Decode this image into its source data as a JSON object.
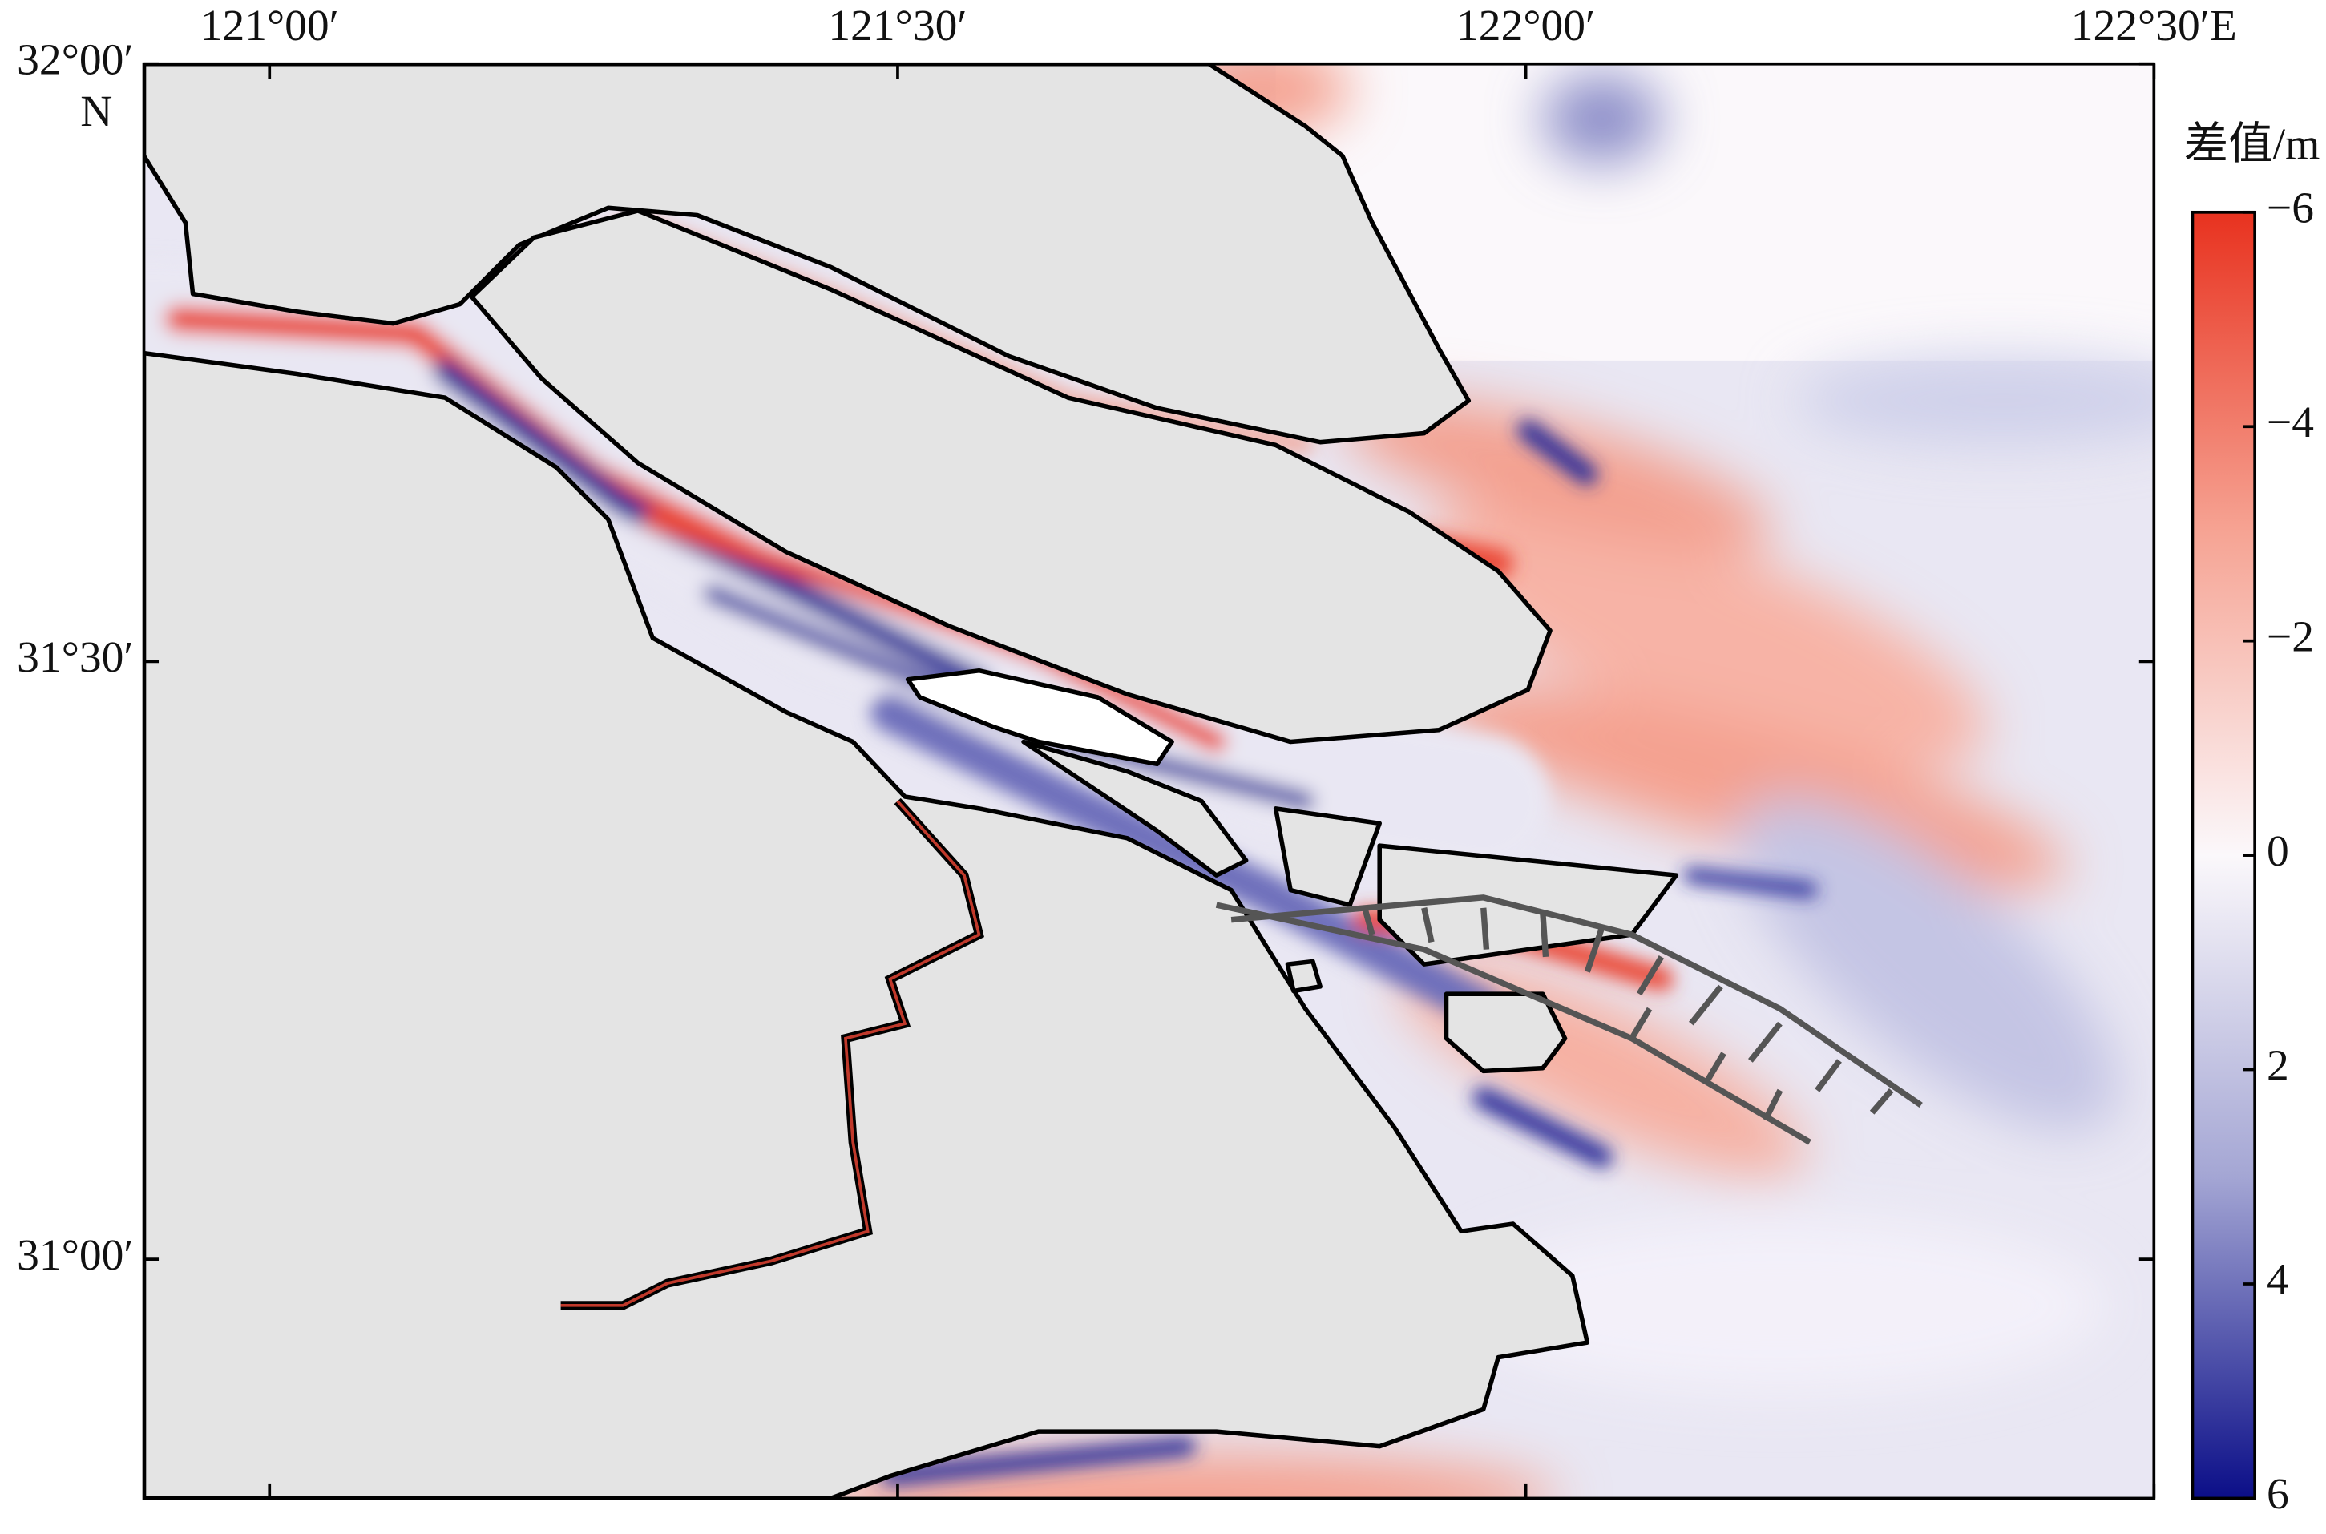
{
  "map": {
    "type": "map",
    "xlim": [
      120.9,
      122.5
    ],
    "ylim": [
      30.8,
      32.0
    ],
    "xticks": [
      {
        "value": 121.0,
        "label": "121°00′"
      },
      {
        "value": 121.5,
        "label": "121°30′"
      },
      {
        "value": 122.0,
        "label": "122°00′"
      },
      {
        "value": 122.5,
        "label": "122°30′E"
      }
    ],
    "yticks": [
      {
        "value": 32.0,
        "label": "32°00′"
      },
      {
        "value": 31.5,
        "label": "31°30′"
      },
      {
        "value": 31.0,
        "label": "31°00′"
      }
    ],
    "y_hemisphere": "N",
    "colorbar": {
      "label": "差值/m",
      "lim": [
        -6,
        6
      ],
      "ticks": [
        {
          "value": -6,
          "label": "−6"
        },
        {
          "value": -4,
          "label": "−4"
        },
        {
          "value": -2,
          "label": "−2"
        },
        0,
        2,
        4,
        6
      ],
      "colors": [
        "#e8321f",
        "#f6a494",
        "#fbf8fb",
        "#a4a6d4",
        "#0b0e88"
      ]
    }
  }
}
